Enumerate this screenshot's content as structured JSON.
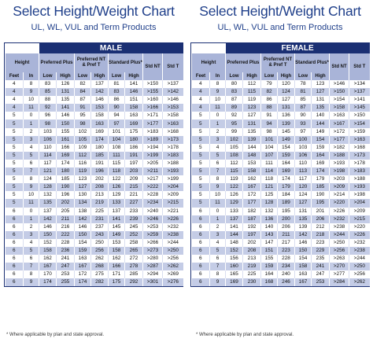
{
  "header": {
    "title": "Select Height/Weight Chart",
    "subtitle": "UL, WL, VUL and Term Products"
  },
  "columns": {
    "height": "Height",
    "preferred_plus": "Preferred Plus",
    "pref_nt": "Preferred NT & Pref T",
    "standard_plus": "Standard Plus*",
    "std_nt": "Std NT",
    "std_t": "Std T",
    "feet": "Feet",
    "in": "In",
    "low": "Low",
    "high": "High"
  },
  "male": {
    "label": "MALE",
    "rows": [
      [
        "4",
        "8",
        "83",
        "126",
        "82",
        "137",
        "81",
        "141",
        ">150",
        ">137"
      ],
      [
        "4",
        "9",
        "85",
        "131",
        "84",
        "142",
        "83",
        "146",
        ">155",
        ">142"
      ],
      [
        "4",
        "10",
        "88",
        "135",
        "87",
        "146",
        "86",
        "151",
        ">160",
        ">146"
      ],
      [
        "4",
        "11",
        "92",
        "141",
        "91",
        "153",
        "90",
        "158",
        ">166",
        ">153"
      ],
      [
        "5",
        "0",
        "96",
        "146",
        "95",
        "158",
        "94",
        "163",
        ">171",
        ">158"
      ],
      [
        "5",
        "1",
        "98",
        "150",
        "98",
        "163",
        "97",
        "169",
        ">177",
        ">163"
      ],
      [
        "5",
        "2",
        "103",
        "155",
        "102",
        "169",
        "101",
        "175",
        ">183",
        ">168"
      ],
      [
        "5",
        "3",
        "106",
        "161",
        "105",
        "174",
        "104",
        "180",
        ">189",
        ">173"
      ],
      [
        "5",
        "4",
        "110",
        "166",
        "109",
        "180",
        "108",
        "186",
        ">194",
        ">178"
      ],
      [
        "5",
        "5",
        "114",
        "169",
        "112",
        "185",
        "111",
        "191",
        ">199",
        ">183"
      ],
      [
        "5",
        "6",
        "117",
        "174",
        "116",
        "191",
        "115",
        "197",
        ">205",
        ">188"
      ],
      [
        "5",
        "7",
        "121",
        "180",
        "119",
        "196",
        "118",
        "203",
        ">211",
        ">193"
      ],
      [
        "5",
        "8",
        "124",
        "185",
        "123",
        "202",
        "122",
        "209",
        ">217",
        ">199"
      ],
      [
        "5",
        "9",
        "128",
        "190",
        "127",
        "208",
        "126",
        "215",
        ">222",
        ">204"
      ],
      [
        "5",
        "10",
        "132",
        "196",
        "130",
        "213",
        "129",
        "221",
        ">228",
        ">209"
      ],
      [
        "5",
        "11",
        "135",
        "202",
        "134",
        "219",
        "133",
        "227",
        ">234",
        ">215"
      ],
      [
        "6",
        "0",
        "137",
        "205",
        "138",
        "225",
        "137",
        "233",
        ">240",
        ">221"
      ],
      [
        "6",
        "1",
        "142",
        "211",
        "142",
        "231",
        "141",
        "239",
        ">246",
        ">226"
      ],
      [
        "6",
        "2",
        "146",
        "216",
        "146",
        "237",
        "145",
        "245",
        ">253",
        ">232"
      ],
      [
        "6",
        "3",
        "150",
        "222",
        "150",
        "243",
        "149",
        "252",
        ">259",
        ">238"
      ],
      [
        "6",
        "4",
        "152",
        "228",
        "154",
        "250",
        "153",
        "258",
        ">266",
        ">244"
      ],
      [
        "6",
        "5",
        "158",
        "236",
        "159",
        "256",
        "158",
        "265",
        ">273",
        ">250"
      ],
      [
        "6",
        "6",
        "162",
        "241",
        "163",
        "262",
        "162",
        "272",
        ">280",
        ">256"
      ],
      [
        "6",
        "7",
        "167",
        "247",
        "167",
        "268",
        "166",
        "278",
        ">287",
        ">262"
      ],
      [
        "6",
        "8",
        "170",
        "253",
        "172",
        "275",
        "171",
        "285",
        ">294",
        ">269"
      ],
      [
        "6",
        "9",
        "174",
        "255",
        "174",
        "282",
        "175",
        "292",
        ">301",
        ">276"
      ]
    ]
  },
  "female": {
    "label": "FEMALE",
    "rows": [
      [
        "4",
        "8",
        "80",
        "112",
        "79",
        "120",
        "78",
        "123",
        ">146",
        ">134"
      ],
      [
        "4",
        "9",
        "83",
        "115",
        "82",
        "124",
        "81",
        "127",
        ">150",
        ">137"
      ],
      [
        "4",
        "10",
        "87",
        "119",
        "86",
        "127",
        "85",
        "131",
        ">154",
        ">141"
      ],
      [
        "4",
        "11",
        "89",
        "123",
        "88",
        "131",
        "87",
        "135",
        ">158",
        ">145"
      ],
      [
        "5",
        "0",
        "92",
        "127",
        "91",
        "136",
        "90",
        "140",
        ">163",
        ">150"
      ],
      [
        "5",
        "1",
        "95",
        "131",
        "94",
        "139",
        "93",
        "144",
        ">167",
        ">154"
      ],
      [
        "5",
        "2",
        "99",
        "135",
        "98",
        "145",
        "97",
        "149",
        ">172",
        ">159"
      ],
      [
        "5",
        "3",
        "102",
        "139",
        "101",
        "149",
        "100",
        "154",
        ">177",
        ">163"
      ],
      [
        "5",
        "4",
        "105",
        "144",
        "104",
        "154",
        "103",
        "159",
        ">182",
        ">168"
      ],
      [
        "5",
        "5",
        "108",
        "148",
        "107",
        "159",
        "106",
        "164",
        ">188",
        ">173"
      ],
      [
        "5",
        "6",
        "112",
        "153",
        "111",
        "164",
        "110",
        "169",
        ">193",
        ">178"
      ],
      [
        "5",
        "7",
        "115",
        "158",
        "114",
        "169",
        "113",
        "174",
        ">198",
        ">183"
      ],
      [
        "5",
        "8",
        "119",
        "162",
        "118",
        "174",
        "117",
        "179",
        ">203",
        ">188"
      ],
      [
        "5",
        "9",
        "122",
        "167",
        "121",
        "179",
        "120",
        "185",
        ">209",
        ">193"
      ],
      [
        "5",
        "10",
        "126",
        "172",
        "125",
        "184",
        "124",
        "190",
        ">214",
        ">198"
      ],
      [
        "5",
        "11",
        "129",
        "177",
        "128",
        "189",
        "127",
        "195",
        ">220",
        ">204"
      ],
      [
        "6",
        "0",
        "133",
        "182",
        "132",
        "195",
        "131",
        "201",
        ">226",
        ">209"
      ],
      [
        "6",
        "1",
        "137",
        "187",
        "136",
        "200",
        "135",
        "206",
        ">232",
        ">215"
      ],
      [
        "6",
        "2",
        "141",
        "192",
        "140",
        "206",
        "139",
        "212",
        ">238",
        ">220"
      ],
      [
        "6",
        "3",
        "144",
        "197",
        "143",
        "211",
        "142",
        "218",
        ">244",
        ">226"
      ],
      [
        "6",
        "4",
        "148",
        "202",
        "147",
        "217",
        "146",
        "223",
        ">250",
        ">232"
      ],
      [
        "6",
        "5",
        "152",
        "208",
        "151",
        "223",
        "150",
        "229",
        ">256",
        ">238"
      ],
      [
        "6",
        "6",
        "156",
        "213",
        "155",
        "228",
        "154",
        "235",
        ">263",
        ">244"
      ],
      [
        "6",
        "7",
        "160",
        "219",
        "159",
        "234",
        "158",
        "241",
        ">270",
        ">250"
      ],
      [
        "6",
        "8",
        "165",
        "225",
        "164",
        "240",
        "163",
        "247",
        ">277",
        ">256"
      ],
      [
        "6",
        "9",
        "169",
        "230",
        "168",
        "246",
        "167",
        "253",
        ">284",
        ">262"
      ]
    ]
  },
  "footnote": "* Where applicable by plan and state approval."
}
